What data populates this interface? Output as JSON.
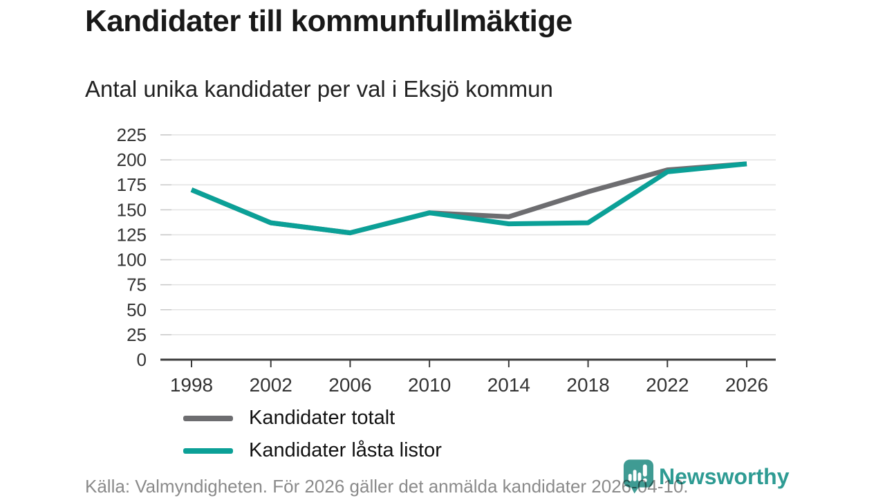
{
  "header": {
    "title": "Kandidater till kommunfullmäktige",
    "subtitle": "Antal unika kandidater per val i Eksjö kommun"
  },
  "chart_data": {
    "type": "line",
    "title": "Kandidater till kommunfullmäktige",
    "subtitle": "Antal unika kandidater per val i Eksjö kommun",
    "categories": [
      "1998",
      "2002",
      "2006",
      "2010",
      "2014",
      "2018",
      "2022",
      "2026"
    ],
    "series": [
      {
        "name": "Kandidater totalt",
        "color": "#6d6d70",
        "values": [
          170,
          137,
          127,
          147,
          143,
          168,
          190,
          196
        ]
      },
      {
        "name": "Kandidater låsta listor",
        "color": "#0ba097",
        "values": [
          170,
          137,
          127,
          147,
          136,
          137,
          188,
          196
        ]
      }
    ],
    "xlabel": "",
    "ylabel": "",
    "ylim": [
      0,
      225
    ],
    "yticks": [
      0,
      25,
      50,
      75,
      100,
      125,
      150,
      175,
      200,
      225
    ],
    "grid": "horizontal",
    "legend_position": "inside-left"
  },
  "footer": {
    "source": "Källa: Valmyndigheten. För 2026 gäller det anmälda kandidater 2026-04-10.",
    "brand": "Newsworthy"
  },
  "colors": {
    "axis": "#3b3b3b",
    "gridline": "#e2e2e2",
    "tick_label": "#333333",
    "brand_teal": "#3f9b93",
    "brand_text": "#2e9b93",
    "footer_text": "#8a8a8a"
  }
}
